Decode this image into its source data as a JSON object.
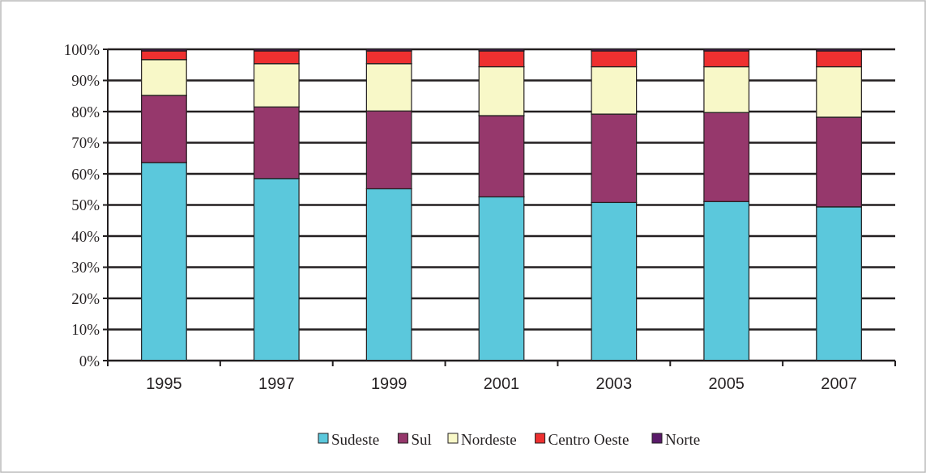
{
  "chart_data": {
    "type": "bar",
    "stacked": true,
    "categories": [
      "1995",
      "1997",
      "1999",
      "2001",
      "2003",
      "2005",
      "2007"
    ],
    "series": [
      {
        "name": "Sudeste",
        "color": "#5bc8dc",
        "values": [
          63.6,
          58.5,
          55.2,
          52.6,
          50.8,
          51.1,
          49.4
        ]
      },
      {
        "name": "Sul",
        "color": "#96386c",
        "values": [
          21.6,
          23.0,
          25.0,
          26.1,
          28.4,
          28.6,
          28.8
        ]
      },
      {
        "name": "Nordeste",
        "color": "#f8f8c8",
        "values": [
          11.5,
          13.9,
          15.2,
          15.7,
          15.2,
          14.7,
          16.2
        ]
      },
      {
        "name": "Centro Oeste",
        "color": "#ee3030",
        "values": [
          2.8,
          4.1,
          4.1,
          5.1,
          5.1,
          5.1,
          5.1
        ]
      },
      {
        "name": "Norte",
        "color": "#5a1a6a",
        "values": [
          0.5,
          0.5,
          0.5,
          0.5,
          0.5,
          0.5,
          0.5
        ]
      }
    ],
    "ylim": [
      0,
      100
    ],
    "yticks": [
      {
        "value": 0,
        "label": "0%"
      },
      {
        "value": 10,
        "label": "10%"
      },
      {
        "value": 20,
        "label": "20%"
      },
      {
        "value": 30,
        "label": "30%"
      },
      {
        "value": 40,
        "label": "40%"
      },
      {
        "value": 50,
        "label": "50%"
      },
      {
        "value": 60,
        "label": "60%"
      },
      {
        "value": 70,
        "label": "70%"
      },
      {
        "value": 80,
        "label": "80%"
      },
      {
        "value": 90,
        "label": "90%"
      },
      {
        "value": 100,
        "label": "100%"
      }
    ],
    "grid": "y",
    "legend": "bottom"
  }
}
